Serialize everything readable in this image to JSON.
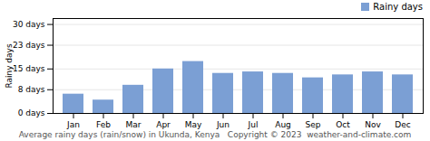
{
  "chart_data": {
    "type": "bar",
    "categories": [
      "Jan",
      "Feb",
      "Mar",
      "Apr",
      "May",
      "Jun",
      "Jul",
      "Aug",
      "Sep",
      "Oct",
      "Nov",
      "Dec"
    ],
    "series": [
      {
        "name": "Rainy days",
        "color": "#7b9fd4",
        "values": [
          6.5,
          4.5,
          9.5,
          15.0,
          17.5,
          13.5,
          14.0,
          13.5,
          12.0,
          13.0,
          14.0,
          13.0
        ]
      }
    ],
    "ylabel": "Rainy days",
    "ylim": [
      0,
      32
    ],
    "yticks": [
      {
        "value": 0,
        "label": "0 days"
      },
      {
        "value": 8,
        "label": "8 days"
      },
      {
        "value": 15,
        "label": "15 days"
      },
      {
        "value": 23,
        "label": "23 days"
      },
      {
        "value": 30,
        "label": "30 days"
      }
    ],
    "grid": true,
    "legend": "upper right",
    "annotations": [
      "Average rainy days (rain/snow) in Ukunda, Kenya   Copyright © 2023  weather-and-climate.com"
    ]
  }
}
